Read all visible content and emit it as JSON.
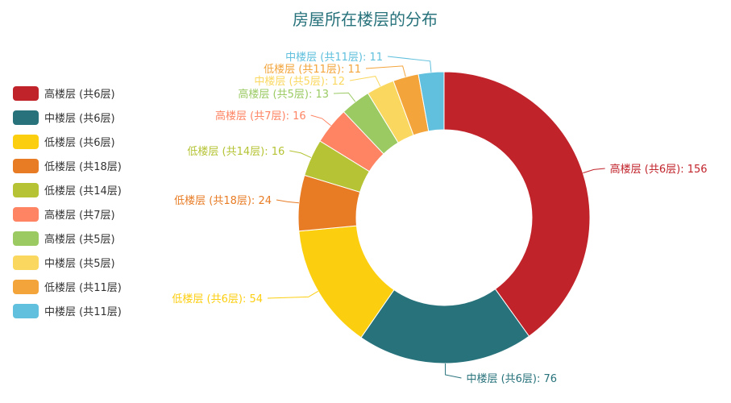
{
  "chart_data": {
    "type": "pie",
    "title": "房屋所在楼层的分布",
    "series": [
      {
        "name": "高楼层 (共6层)",
        "value": 156,
        "color": "#c1232b"
      },
      {
        "name": "中楼层 (共6层)",
        "value": 76,
        "color": "#27727b"
      },
      {
        "name": "低楼层 (共6层)",
        "value": 54,
        "color": "#fcce10"
      },
      {
        "name": "低楼层 (共18层)",
        "value": 24,
        "color": "#e87c25"
      },
      {
        "name": "低楼层 (共14层)",
        "value": 16,
        "color": "#b5c334"
      },
      {
        "name": "高楼层 (共7层)",
        "value": 16,
        "color": "#fe8463"
      },
      {
        "name": "高楼层 (共5层)",
        "value": 13,
        "color": "#9bca63"
      },
      {
        "name": "中楼层 (共5层)",
        "value": 12,
        "color": "#fad860"
      },
      {
        "name": "低楼层 (共11层)",
        "value": 11,
        "color": "#f3a43b"
      },
      {
        "name": "中楼层 (共11层)",
        "value": 11,
        "color": "#60c0dd"
      }
    ],
    "style": "donut",
    "legend_position": "left"
  }
}
